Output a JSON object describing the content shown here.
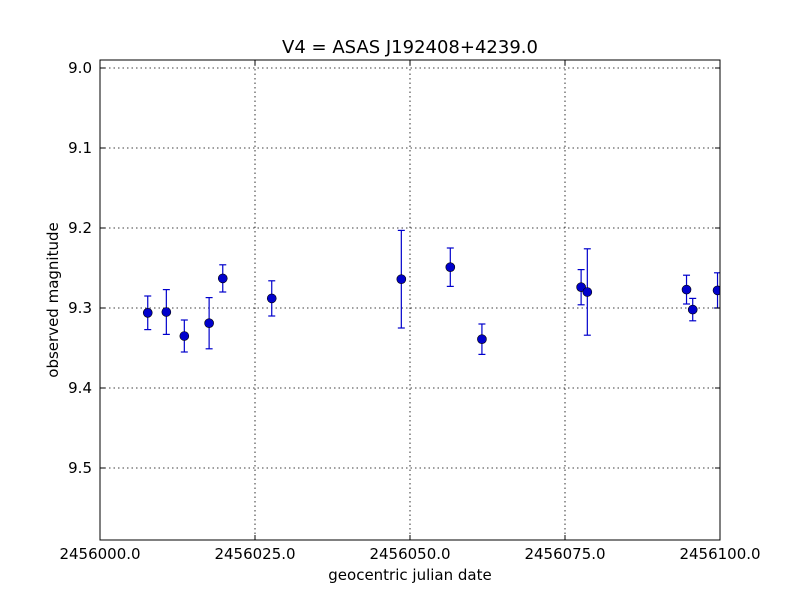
{
  "chart_data": {
    "type": "scatter",
    "title": "V4 = ASAS J192408+4239.0",
    "xlabel": "geocentric julian date",
    "ylabel": "observed magnitude",
    "xlim": [
      2456000.0,
      2456100.0
    ],
    "ylim": [
      9.59,
      8.99
    ],
    "y_inverted": true,
    "grid": true,
    "xticks": [
      {
        "value": 2456000.0,
        "label": "2456000.0"
      },
      {
        "value": 2456025.0,
        "label": "2456025.0"
      },
      {
        "value": 2456050.0,
        "label": "2456050.0"
      },
      {
        "value": 2456075.0,
        "label": "2456075.0"
      },
      {
        "value": 2456100.0,
        "label": "2456100.0"
      }
    ],
    "yticks": [
      {
        "value": 9.0,
        "label": "9.0"
      },
      {
        "value": 9.1,
        "label": "9.1"
      },
      {
        "value": 9.2,
        "label": "9.2"
      },
      {
        "value": 9.3,
        "label": "9.3"
      },
      {
        "value": 9.4,
        "label": "9.4"
      },
      {
        "value": 9.5,
        "label": "9.5"
      }
    ],
    "series": [
      {
        "color": "#0000cc",
        "points": [
          {
            "x": 2456007.7,
            "y": 9.306,
            "err": 0.021
          },
          {
            "x": 2456010.7,
            "y": 9.305,
            "err": 0.028
          },
          {
            "x": 2456013.6,
            "y": 9.335,
            "err": 0.02
          },
          {
            "x": 2456017.6,
            "y": 9.319,
            "err": 0.032
          },
          {
            "x": 2456019.8,
            "y": 9.263,
            "err": 0.017
          },
          {
            "x": 2456027.7,
            "y": 9.288,
            "err": 0.022
          },
          {
            "x": 2456048.6,
            "y": 9.264,
            "err": 0.061
          },
          {
            "x": 2456056.5,
            "y": 9.249,
            "err": 0.024
          },
          {
            "x": 2456061.6,
            "y": 9.339,
            "err": 0.019
          },
          {
            "x": 2456077.6,
            "y": 9.274,
            "err": 0.022
          },
          {
            "x": 2456078.6,
            "y": 9.28,
            "err": 0.054
          },
          {
            "x": 2456094.6,
            "y": 9.277,
            "err": 0.018
          },
          {
            "x": 2456095.6,
            "y": 9.302,
            "err": 0.014
          },
          {
            "x": 2456099.6,
            "y": 9.278,
            "err": 0.022
          }
        ]
      }
    ]
  }
}
